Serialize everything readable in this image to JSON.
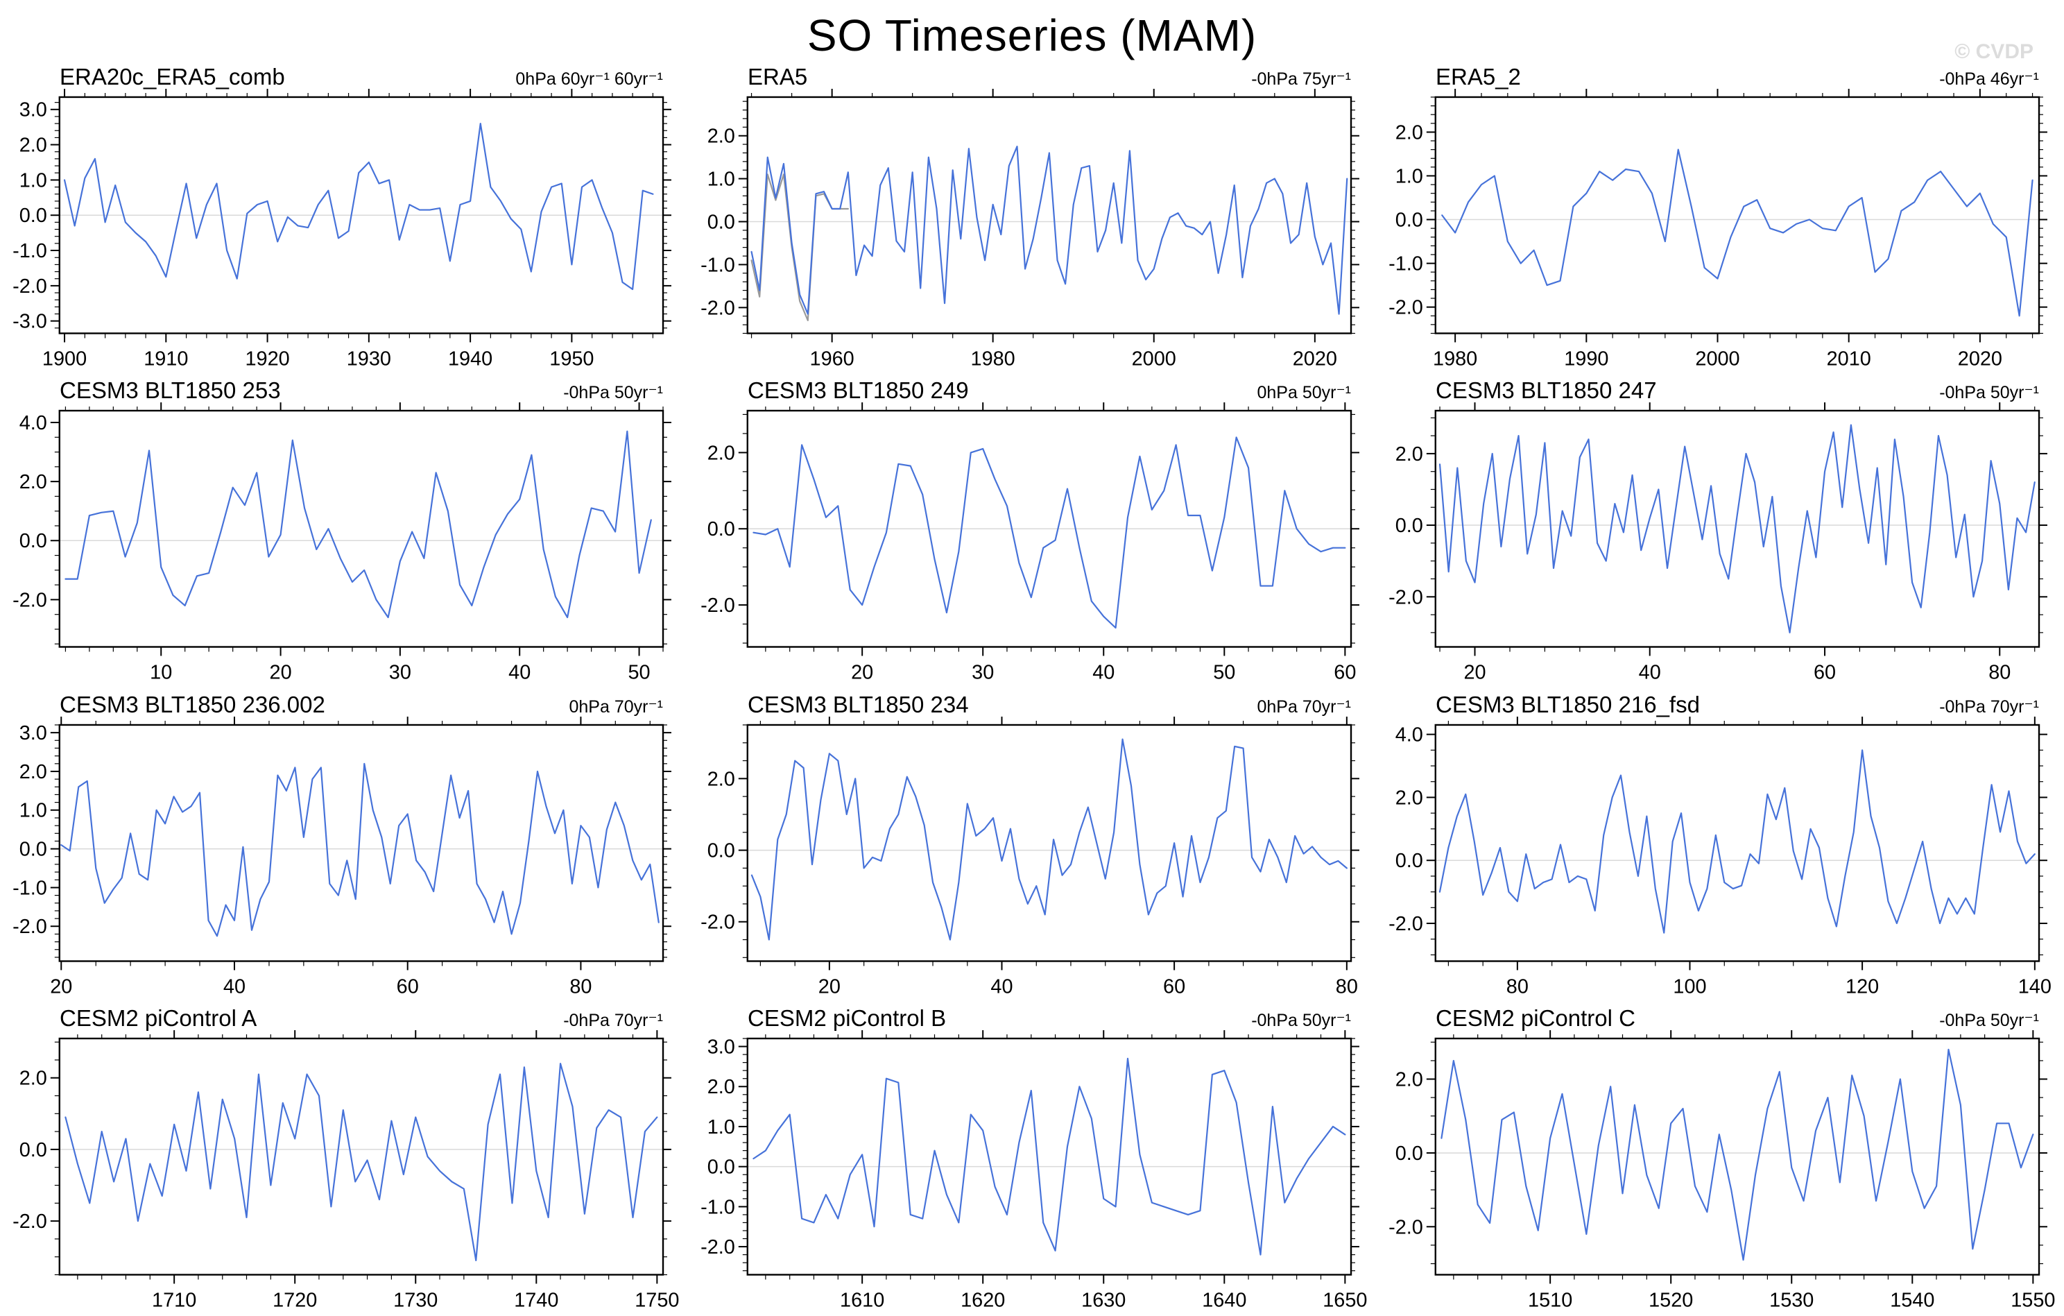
{
  "page": {
    "title": "SO Timeseries (MAM)",
    "watermark": "© CVDP"
  },
  "style": {
    "line_color": "#4672d9",
    "secondary_line_color": "#999999",
    "zero_line_color": "#d9d9d9",
    "frame_color": "#000000",
    "watermark_color": "#dcdcdc"
  },
  "chart_data": [
    {
      "type": "line",
      "title": "ERA20c_ERA5_comb",
      "units_label": "0hPa 60yr⁻¹ 60yr⁻¹",
      "x_start": 1900,
      "x_step": 1,
      "xlim": [
        1899.5,
        1959
      ],
      "ylim": [
        -3.35,
        3.35
      ],
      "xticks": [
        1900,
        1910,
        1920,
        1930,
        1940,
        1950
      ],
      "x_minor_step": 2,
      "yticks": [
        -3,
        -2,
        -1,
        0,
        1,
        2,
        3
      ],
      "y_minor_step": 0.2,
      "values": [
        1.0,
        -0.3,
        1.05,
        1.6,
        -0.2,
        0.85,
        -0.2,
        -0.5,
        -0.75,
        -1.15,
        -1.75,
        -0.4,
        0.9,
        -0.65,
        0.3,
        0.9,
        -1.0,
        -1.8,
        0.05,
        0.3,
        0.4,
        -0.75,
        -0.05,
        -0.3,
        -0.35,
        0.3,
        0.7,
        -0.65,
        -0.45,
        1.2,
        1.5,
        0.9,
        1.0,
        -0.7,
        0.3,
        0.15,
        0.15,
        0.2,
        -1.3,
        0.3,
        0.4,
        2.6,
        0.8,
        0.4,
        -0.1,
        -0.4,
        -1.6,
        0.1,
        0.8,
        0.9,
        -1.4,
        0.8,
        1.0,
        0.2,
        -0.5,
        -1.9,
        -2.1,
        0.7,
        0.6
      ]
    },
    {
      "type": "line",
      "title": "ERA5",
      "units_label": "-0hPa 75yr⁻¹",
      "x_start": 1950,
      "x_step": 1,
      "xlim": [
        1949.5,
        2024.5
      ],
      "ylim": [
        -2.6,
        2.9
      ],
      "xticks": [
        1960,
        1980,
        2000,
        2020
      ],
      "x_minor_step": 5,
      "yticks": [
        -2,
        -1,
        0,
        1,
        2
      ],
      "y_minor_step": 0.2,
      "values": [
        -0.7,
        -1.6,
        1.5,
        0.55,
        1.35,
        -0.5,
        -1.7,
        -2.15,
        0.65,
        0.7,
        0.3,
        0.3,
        1.15,
        -1.25,
        -0.55,
        -0.8,
        0.85,
        1.25,
        -0.45,
        -0.7,
        1.15,
        -1.55,
        1.5,
        0.3,
        -1.9,
        1.2,
        -0.4,
        1.7,
        0.1,
        -0.9,
        0.4,
        -0.3,
        1.3,
        1.75,
        -1.1,
        -0.4,
        0.55,
        1.6,
        -0.9,
        -1.45,
        0.4,
        1.25,
        1.3,
        -0.7,
        -0.2,
        0.9,
        -0.5,
        1.65,
        -0.9,
        -1.35,
        -1.1,
        -0.4,
        0.1,
        0.2,
        -0.1,
        -0.15,
        -0.3,
        0.0,
        -1.2,
        -0.3,
        0.85,
        -1.3,
        -0.1,
        0.3,
        0.9,
        1.0,
        0.65,
        -0.5,
        -0.3,
        0.9,
        -0.35,
        -1.0,
        -0.5,
        -2.15,
        1.0
      ],
      "secondary_series": {
        "x_start": 1950,
        "values": [
          -0.9,
          -1.75,
          1.1,
          0.5,
          1.1,
          -0.6,
          -1.85,
          -2.3,
          0.6,
          0.65,
          0.3,
          0.3,
          0.3
        ]
      }
    },
    {
      "type": "line",
      "title": "ERA5_2",
      "units_label": "-0hPa 46yr⁻¹",
      "x_start": 1979,
      "x_step": 1,
      "xlim": [
        1978.5,
        2024.5
      ],
      "ylim": [
        -2.6,
        2.8
      ],
      "xticks": [
        1980,
        1990,
        2000,
        2010,
        2020
      ],
      "x_minor_step": 2,
      "yticks": [
        -2,
        -1,
        0,
        1,
        2
      ],
      "y_minor_step": 0.2,
      "values": [
        0.1,
        -0.3,
        0.4,
        0.8,
        1.0,
        -0.5,
        -1.0,
        -0.7,
        -1.5,
        -1.4,
        0.3,
        0.6,
        1.1,
        0.9,
        1.15,
        1.1,
        0.6,
        -0.5,
        1.6,
        0.3,
        -1.1,
        -1.35,
        -0.4,
        0.3,
        0.45,
        -0.2,
        -0.3,
        -0.1,
        0.0,
        -0.2,
        -0.25,
        0.3,
        0.5,
        -1.2,
        -0.9,
        0.2,
        0.4,
        0.9,
        1.1,
        0.7,
        0.3,
        0.6,
        -0.1,
        -0.4,
        -2.2,
        0.9
      ]
    },
    {
      "type": "line",
      "title": "CESM3 BLT1850 253",
      "units_label": "-0hPa 50yr⁻¹",
      "x_start": 2,
      "x_step": 1,
      "xlim": [
        1.5,
        52
      ],
      "ylim": [
        -3.6,
        4.4
      ],
      "xticks": [
        10,
        20,
        30,
        40,
        50
      ],
      "x_minor_step": 2,
      "yticks": [
        -2,
        0,
        2,
        4
      ],
      "y_minor_step": 0.5,
      "values": [
        -1.3,
        -1.3,
        0.85,
        0.95,
        1.0,
        -0.55,
        0.6,
        3.05,
        -0.9,
        -1.85,
        -2.2,
        -1.2,
        -1.1,
        0.3,
        1.8,
        1.2,
        2.3,
        -0.55,
        0.2,
        3.4,
        1.1,
        -0.3,
        0.4,
        -0.6,
        -1.4,
        -1.0,
        -2.0,
        -2.6,
        -0.7,
        0.3,
        -0.6,
        2.3,
        1.0,
        -1.5,
        -2.2,
        -0.9,
        0.2,
        0.9,
        1.4,
        2.9,
        -0.3,
        -1.9,
        -2.6,
        -0.5,
        1.1,
        1.0,
        0.3,
        3.7,
        -1.1,
        0.7
      ]
    },
    {
      "type": "line",
      "title": "CESM3 BLT1850 249",
      "units_label": "0hPa 50yr⁻¹",
      "x_start": 11,
      "x_step": 1,
      "xlim": [
        10.5,
        60.5
      ],
      "ylim": [
        -3.1,
        3.1
      ],
      "xticks": [
        20,
        30,
        40,
        50,
        60
      ],
      "x_minor_step": 2,
      "yticks": [
        -2,
        0,
        2
      ],
      "y_minor_step": 0.5,
      "values": [
        -0.1,
        -0.15,
        0.0,
        -1.0,
        2.2,
        1.3,
        0.3,
        0.6,
        -1.6,
        -2.0,
        -1.0,
        -0.1,
        1.7,
        1.65,
        0.9,
        -0.8,
        -2.2,
        -0.6,
        2.0,
        2.1,
        1.3,
        0.6,
        -0.9,
        -1.8,
        -0.5,
        -0.3,
        1.05,
        -0.5,
        -1.9,
        -2.3,
        -2.6,
        0.3,
        1.9,
        0.5,
        1.0,
        2.2,
        0.35,
        0.35,
        -1.1,
        0.3,
        2.4,
        1.6,
        -1.5,
        -1.5,
        1.0,
        0.0,
        -0.4,
        -0.6,
        -0.5,
        -0.5
      ]
    },
    {
      "type": "line",
      "title": "CESM3 BLT1850 247",
      "units_label": "-0hPa 50yr⁻¹",
      "x_start": 16,
      "x_step": 1,
      "xlim": [
        15.5,
        84.5
      ],
      "ylim": [
        -3.4,
        3.2
      ],
      "xticks": [
        20,
        40,
        60,
        80
      ],
      "x_minor_step": 4,
      "yticks": [
        -2,
        0,
        2
      ],
      "y_minor_step": 0.5,
      "values": [
        1.7,
        -1.3,
        1.6,
        -1.0,
        -1.6,
        0.6,
        2.0,
        -0.6,
        1.3,
        2.5,
        -0.8,
        0.3,
        2.3,
        -1.2,
        0.4,
        -0.3,
        1.9,
        2.4,
        -0.5,
        -1.0,
        0.6,
        -0.2,
        1.4,
        -0.7,
        0.2,
        1.0,
        -1.2,
        0.5,
        2.2,
        0.9,
        -0.4,
        1.1,
        -0.8,
        -1.5,
        0.3,
        2.0,
        1.2,
        -0.6,
        0.8,
        -1.7,
        -3.0,
        -1.2,
        0.4,
        -0.9,
        1.5,
        2.6,
        0.5,
        2.8,
        1.0,
        -0.5,
        1.6,
        -1.1,
        2.4,
        0.8,
        -1.6,
        -2.3,
        -0.2,
        2.5,
        1.4,
        -0.9,
        0.3,
        -2.0,
        -1.0,
        1.8,
        0.6,
        -1.8,
        0.2,
        -0.2,
        1.2
      ]
    },
    {
      "type": "line",
      "title": "CESM3 BLT1850 236.002",
      "units_label": "0hPa 70yr⁻¹",
      "x_start": 20,
      "x_step": 1,
      "xlim": [
        19.8,
        89.5
      ],
      "ylim": [
        -2.9,
        3.2
      ],
      "xticks": [
        20,
        40,
        60,
        80
      ],
      "x_minor_step": 4,
      "yticks": [
        -2,
        -1,
        0,
        1,
        2,
        3
      ],
      "y_minor_step": 0.2,
      "values": [
        0.1,
        -0.05,
        1.6,
        1.75,
        -0.5,
        -1.4,
        -1.05,
        -0.75,
        0.4,
        -0.65,
        -0.8,
        1.0,
        0.65,
        1.35,
        0.95,
        1.1,
        1.45,
        -1.85,
        -2.25,
        -1.45,
        -1.85,
        0.05,
        -2.1,
        -1.3,
        -0.85,
        1.9,
        1.5,
        2.1,
        0.3,
        1.8,
        2.1,
        -0.9,
        -1.2,
        -0.3,
        -1.3,
        2.2,
        1.0,
        0.3,
        -0.9,
        0.6,
        0.9,
        -0.3,
        -0.6,
        -1.1,
        0.4,
        1.9,
        0.8,
        1.5,
        -0.9,
        -1.3,
        -1.9,
        -1.1,
        -2.2,
        -1.4,
        0.2,
        2.0,
        1.1,
        0.4,
        1.0,
        -0.9,
        0.6,
        0.3,
        -1.0,
        0.5,
        1.2,
        0.6,
        -0.3,
        -0.8,
        -0.4,
        -1.9
      ]
    },
    {
      "type": "line",
      "title": "CESM3 BLT1850 234",
      "units_label": "0hPa 70yr⁻¹",
      "x_start": 11,
      "x_step": 1,
      "xlim": [
        10.5,
        80.5
      ],
      "ylim": [
        -3.1,
        3.5
      ],
      "xticks": [
        20,
        40,
        60,
        80
      ],
      "x_minor_step": 4,
      "yticks": [
        -2,
        0,
        2
      ],
      "y_minor_step": 0.5,
      "values": [
        -0.7,
        -1.3,
        -2.5,
        0.3,
        1.0,
        2.5,
        2.3,
        -0.4,
        1.4,
        2.7,
        2.5,
        1.0,
        2.0,
        -0.5,
        -0.2,
        -0.3,
        0.6,
        1.0,
        2.05,
        1.5,
        0.7,
        -0.9,
        -1.6,
        -2.5,
        -0.9,
        1.3,
        0.4,
        0.6,
        0.9,
        -0.3,
        0.6,
        -0.8,
        -1.5,
        -1.0,
        -1.8,
        0.3,
        -0.7,
        -0.4,
        0.5,
        1.2,
        0.2,
        -0.8,
        0.5,
        3.1,
        1.8,
        -0.4,
        -1.8,
        -1.2,
        -1.0,
        0.2,
        -1.3,
        0.4,
        -0.9,
        -0.2,
        0.9,
        1.1,
        2.9,
        2.85,
        -0.2,
        -0.6,
        0.3,
        -0.2,
        -0.9,
        0.4,
        -0.1,
        0.1,
        -0.2,
        -0.4,
        -0.3,
        -0.5
      ]
    },
    {
      "type": "line",
      "title": "CESM3 BLT1850 216_fsd",
      "units_label": "-0hPa 70yr⁻¹",
      "x_start": 71,
      "x_step": 1,
      "xlim": [
        70.5,
        140.5
      ],
      "ylim": [
        -3.2,
        4.3
      ],
      "xticks": [
        80,
        100,
        120,
        140
      ],
      "x_minor_step": 4,
      "yticks": [
        -2,
        0,
        2,
        4
      ],
      "y_minor_step": 0.5,
      "values": [
        -1.0,
        0.4,
        1.4,
        2.1,
        0.6,
        -1.1,
        -0.4,
        0.4,
        -1.0,
        -1.3,
        0.2,
        -0.9,
        -0.7,
        -0.6,
        0.5,
        -0.7,
        -0.5,
        -0.6,
        -1.6,
        0.8,
        2.0,
        2.7,
        0.9,
        -0.5,
        1.4,
        -0.9,
        -2.3,
        0.6,
        1.5,
        -0.7,
        -1.6,
        -0.9,
        0.8,
        -0.7,
        -0.9,
        -0.8,
        0.2,
        -0.1,
        2.1,
        1.3,
        2.3,
        0.3,
        -0.6,
        1.0,
        0.4,
        -1.2,
        -2.1,
        -0.5,
        0.9,
        3.5,
        1.4,
        0.4,
        -1.3,
        -2.0,
        -1.2,
        -0.3,
        0.6,
        -0.9,
        -2.0,
        -1.2,
        -1.7,
        -1.2,
        -1.7,
        0.4,
        2.4,
        0.9,
        2.2,
        0.6,
        -0.1,
        0.2
      ]
    },
    {
      "type": "line",
      "title": "CESM2 piControl A",
      "units_label": "-0hPa 70yr⁻¹",
      "x_start": 1701,
      "x_step": 1,
      "xlim": [
        1700.5,
        1750.5
      ],
      "ylim": [
        -3.5,
        3.1
      ],
      "xticks": [
        1710,
        1720,
        1730,
        1740,
        1750
      ],
      "x_minor_step": 2,
      "yticks": [
        -2,
        0,
        2
      ],
      "y_minor_step": 0.5,
      "values": [
        0.9,
        -0.4,
        -1.5,
        0.5,
        -0.9,
        0.3,
        -2.0,
        -0.4,
        -1.3,
        0.7,
        -0.6,
        1.6,
        -1.1,
        1.4,
        0.3,
        -1.9,
        2.1,
        -1.0,
        1.3,
        0.3,
        2.1,
        1.5,
        -1.6,
        1.1,
        -0.9,
        -0.3,
        -1.4,
        0.8,
        -0.7,
        0.9,
        -0.2,
        -0.6,
        -0.9,
        -1.1,
        -3.1,
        0.7,
        2.1,
        -1.5,
        2.3,
        -0.6,
        -1.9,
        2.4,
        1.2,
        -1.8,
        0.6,
        1.1,
        0.9,
        -1.9,
        0.5,
        0.9
      ]
    },
    {
      "type": "line",
      "title": "CESM2 piControl B",
      "units_label": "-0hPa 50yr⁻¹",
      "x_start": 1601,
      "x_step": 1,
      "xlim": [
        1600.5,
        1650.5
      ],
      "ylim": [
        -2.7,
        3.2
      ],
      "xticks": [
        1610,
        1620,
        1630,
        1640,
        1650
      ],
      "x_minor_step": 2,
      "yticks": [
        -2,
        -1,
        0,
        1,
        2,
        3
      ],
      "y_minor_step": 0.2,
      "values": [
        0.2,
        0.4,
        0.9,
        1.3,
        -1.3,
        -1.4,
        -0.7,
        -1.3,
        -0.2,
        0.3,
        -1.5,
        2.2,
        2.1,
        -1.2,
        -1.3,
        0.4,
        -0.7,
        -1.4,
        1.3,
        0.9,
        -0.5,
        -1.2,
        0.6,
        1.9,
        -1.4,
        -2.1,
        0.5,
        2.0,
        1.2,
        -0.8,
        -1.0,
        2.7,
        0.3,
        -0.9,
        -1.0,
        -1.1,
        -1.2,
        -1.1,
        2.3,
        2.4,
        1.6,
        -0.4,
        -2.2,
        1.5,
        -0.9,
        -0.3,
        0.2,
        0.6,
        1.0,
        0.8
      ]
    },
    {
      "type": "line",
      "title": "CESM2 piControl C",
      "units_label": "-0hPa 50yr⁻¹",
      "x_start": 1501,
      "x_step": 1,
      "xlim": [
        1500.5,
        1550.5
      ],
      "ylim": [
        -3.3,
        3.1
      ],
      "xticks": [
        1510,
        1520,
        1530,
        1540,
        1550
      ],
      "x_minor_step": 2,
      "yticks": [
        -2,
        0,
        2
      ],
      "y_minor_step": 0.5,
      "values": [
        0.4,
        2.5,
        0.9,
        -1.4,
        -1.9,
        0.9,
        1.1,
        -0.9,
        -2.1,
        0.4,
        1.6,
        -0.3,
        -2.2,
        0.2,
        1.8,
        -1.1,
        1.3,
        -0.6,
        -1.5,
        0.8,
        1.2,
        -0.9,
        -1.6,
        0.5,
        -1.0,
        -2.9,
        -0.6,
        1.2,
        2.2,
        -0.4,
        -1.3,
        0.6,
        1.5,
        -0.8,
        2.1,
        1.0,
        -1.3,
        0.3,
        2.0,
        -0.5,
        -1.5,
        -0.9,
        2.8,
        1.3,
        -2.6,
        -1.0,
        0.8,
        0.8,
        -0.4,
        0.5
      ]
    }
  ]
}
